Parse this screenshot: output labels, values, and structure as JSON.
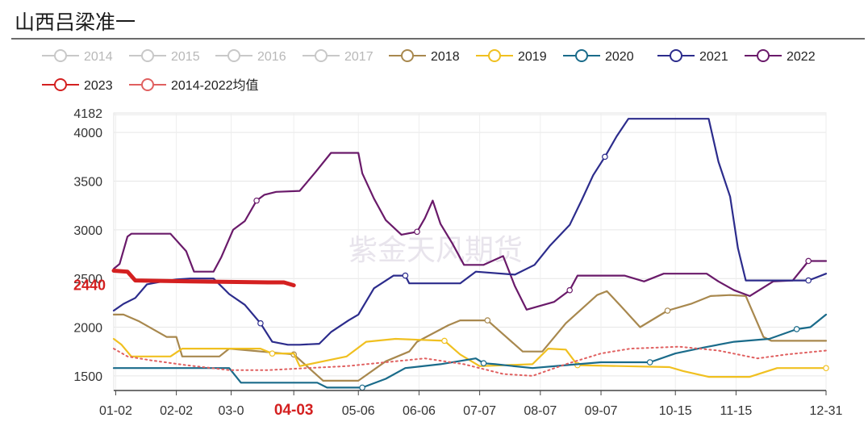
{
  "title": "山西吕梁准一",
  "watermark": "紫金天风期货",
  "chart_data": {
    "type": "line",
    "ylim": [
      1350,
      4200
    ],
    "yticks": [
      1500,
      2000,
      2500,
      3000,
      3500,
      4000
    ],
    "ymax_label": "4182",
    "ymax_value": 4182,
    "current_label": "2440",
    "current_value": 2440,
    "xlim": [
      1,
      365
    ],
    "xticks": [
      {
        "label": "01-02",
        "day": 2
      },
      {
        "label": "02-02",
        "day": 33
      },
      {
        "label": "03-0",
        "day": 61
      },
      {
        "label": "04-03",
        "day": 93,
        "highlight": true
      },
      {
        "label": "05-06",
        "day": 126
      },
      {
        "label": "06-06",
        "day": 157
      },
      {
        "label": "07-07",
        "day": 188
      },
      {
        "label": "08-07",
        "day": 219
      },
      {
        "label": "09-07",
        "day": 250
      },
      {
        "label": "10-15",
        "day": 288
      },
      {
        "label": "11-15",
        "day": 319
      },
      {
        "label": "12-31",
        "day": 365
      }
    ],
    "legend_placement": "top",
    "series": [
      {
        "name": "2014",
        "color": "#c8c8c8",
        "legend_only": true
      },
      {
        "name": "2015",
        "color": "#c8c8c8",
        "legend_only": true
      },
      {
        "name": "2016",
        "color": "#c8c8c8",
        "legend_only": true
      },
      {
        "name": "2017",
        "color": "#c8c8c8",
        "legend_only": true
      },
      {
        "name": "2018",
        "color": "#a8884e",
        "points": [
          [
            1,
            2130
          ],
          [
            6,
            2130
          ],
          [
            14,
            2060
          ],
          [
            28,
            1900
          ],
          [
            33,
            1900
          ],
          [
            36,
            1700
          ],
          [
            55,
            1700
          ],
          [
            60,
            1780
          ],
          [
            93,
            1720
          ],
          [
            108,
            1450
          ],
          [
            126,
            1450
          ],
          [
            140,
            1650
          ],
          [
            152,
            1750
          ],
          [
            156,
            1850
          ],
          [
            172,
            2020
          ],
          [
            178,
            2070
          ],
          [
            192,
            2070
          ],
          [
            210,
            1750
          ],
          [
            220,
            1750
          ],
          [
            232,
            2040
          ],
          [
            248,
            2330
          ],
          [
            253,
            2370
          ],
          [
            260,
            2220
          ],
          [
            270,
            2000
          ],
          [
            284,
            2170
          ],
          [
            296,
            2240
          ],
          [
            306,
            2320
          ],
          [
            316,
            2330
          ],
          [
            324,
            2320
          ],
          [
            333,
            1900
          ],
          [
            337,
            1860
          ],
          [
            365,
            1860
          ]
        ]
      },
      {
        "name": "2019",
        "color": "#f0c020",
        "points": [
          [
            1,
            1880
          ],
          [
            5,
            1820
          ],
          [
            10,
            1700
          ],
          [
            30,
            1700
          ],
          [
            36,
            1780
          ],
          [
            76,
            1780
          ],
          [
            82,
            1730
          ],
          [
            93,
            1730
          ],
          [
            96,
            1600
          ],
          [
            120,
            1700
          ],
          [
            130,
            1850
          ],
          [
            145,
            1880
          ],
          [
            170,
            1860
          ],
          [
            178,
            1720
          ],
          [
            188,
            1600
          ],
          [
            215,
            1620
          ],
          [
            223,
            1780
          ],
          [
            232,
            1770
          ],
          [
            238,
            1610
          ],
          [
            285,
            1590
          ],
          [
            292,
            1550
          ],
          [
            305,
            1490
          ],
          [
            326,
            1490
          ],
          [
            340,
            1580
          ],
          [
            365,
            1580
          ]
        ]
      },
      {
        "name": "2020",
        "color": "#1a6b8a",
        "points": [
          [
            1,
            1580
          ],
          [
            60,
            1580
          ],
          [
            66,
            1430
          ],
          [
            105,
            1430
          ],
          [
            110,
            1380
          ],
          [
            128,
            1380
          ],
          [
            140,
            1470
          ],
          [
            150,
            1580
          ],
          [
            168,
            1620
          ],
          [
            186,
            1680
          ],
          [
            190,
            1630
          ],
          [
            196,
            1620
          ],
          [
            215,
            1580
          ],
          [
            232,
            1610
          ],
          [
            250,
            1640
          ],
          [
            275,
            1640
          ],
          [
            288,
            1730
          ],
          [
            302,
            1790
          ],
          [
            318,
            1850
          ],
          [
            336,
            1880
          ],
          [
            350,
            1980
          ],
          [
            357,
            2000
          ],
          [
            365,
            2130
          ]
        ]
      },
      {
        "name": "2021",
        "color": "#2c2c8c",
        "points": [
          [
            1,
            2170
          ],
          [
            6,
            2240
          ],
          [
            12,
            2300
          ],
          [
            18,
            2440
          ],
          [
            26,
            2470
          ],
          [
            33,
            2490
          ],
          [
            40,
            2500
          ],
          [
            52,
            2500
          ],
          [
            60,
            2340
          ],
          [
            68,
            2230
          ],
          [
            76,
            2040
          ],
          [
            82,
            1850
          ],
          [
            90,
            1820
          ],
          [
            96,
            1820
          ],
          [
            106,
            1830
          ],
          [
            112,
            1950
          ],
          [
            121,
            2070
          ],
          [
            126,
            2130
          ],
          [
            134,
            2400
          ],
          [
            144,
            2530
          ],
          [
            150,
            2530
          ],
          [
            152,
            2450
          ],
          [
            178,
            2450
          ],
          [
            186,
            2570
          ],
          [
            206,
            2540
          ],
          [
            216,
            2640
          ],
          [
            224,
            2840
          ],
          [
            234,
            3050
          ],
          [
            240,
            3300
          ],
          [
            246,
            3560
          ],
          [
            252,
            3750
          ],
          [
            258,
            3960
          ],
          [
            264,
            4140
          ],
          [
            305,
            4140
          ],
          [
            310,
            3700
          ],
          [
            316,
            3340
          ],
          [
            320,
            2810
          ],
          [
            324,
            2480
          ],
          [
            336,
            2480
          ],
          [
            344,
            2480
          ],
          [
            356,
            2480
          ],
          [
            365,
            2550
          ]
        ]
      },
      {
        "name": "2022",
        "color": "#6a1a6a",
        "points": [
          [
            1,
            2600
          ],
          [
            4,
            2650
          ],
          [
            8,
            2930
          ],
          [
            10,
            2960
          ],
          [
            30,
            2960
          ],
          [
            38,
            2780
          ],
          [
            42,
            2570
          ],
          [
            52,
            2570
          ],
          [
            56,
            2720
          ],
          [
            62,
            3000
          ],
          [
            68,
            3090
          ],
          [
            74,
            3300
          ],
          [
            78,
            3360
          ],
          [
            84,
            3390
          ],
          [
            96,
            3400
          ],
          [
            104,
            3590
          ],
          [
            112,
            3790
          ],
          [
            126,
            3790
          ],
          [
            128,
            3580
          ],
          [
            134,
            3320
          ],
          [
            140,
            3100
          ],
          [
            148,
            2950
          ],
          [
            156,
            2980
          ],
          [
            160,
            3120
          ],
          [
            164,
            3300
          ],
          [
            168,
            3060
          ],
          [
            174,
            2860
          ],
          [
            180,
            2640
          ],
          [
            190,
            2640
          ],
          [
            200,
            2730
          ],
          [
            206,
            2420
          ],
          [
            212,
            2180
          ],
          [
            226,
            2260
          ],
          [
            234,
            2380
          ],
          [
            238,
            2530
          ],
          [
            262,
            2530
          ],
          [
            272,
            2470
          ],
          [
            282,
            2550
          ],
          [
            304,
            2550
          ],
          [
            310,
            2470
          ],
          [
            318,
            2380
          ],
          [
            326,
            2320
          ],
          [
            338,
            2470
          ],
          [
            348,
            2480
          ],
          [
            356,
            2680
          ],
          [
            365,
            2680
          ]
        ]
      },
      {
        "name": "2023",
        "color": "#d42020",
        "points": [
          [
            1,
            2580
          ],
          [
            8,
            2570
          ],
          [
            12,
            2480
          ],
          [
            40,
            2470
          ],
          [
            80,
            2460
          ],
          [
            88,
            2460
          ],
          [
            93,
            2430
          ]
        ]
      },
      {
        "name": "2014-2022均值",
        "color": "#e06060",
        "dotted": true,
        "points": [
          [
            1,
            1780
          ],
          [
            8,
            1700
          ],
          [
            20,
            1660
          ],
          [
            38,
            1610
          ],
          [
            60,
            1560
          ],
          [
            80,
            1560
          ],
          [
            100,
            1580
          ],
          [
            120,
            1600
          ],
          [
            140,
            1640
          ],
          [
            160,
            1680
          ],
          [
            180,
            1620
          ],
          [
            200,
            1520
          ],
          [
            215,
            1500
          ],
          [
            232,
            1620
          ],
          [
            250,
            1730
          ],
          [
            265,
            1780
          ],
          [
            290,
            1800
          ],
          [
            310,
            1760
          ],
          [
            330,
            1680
          ],
          [
            345,
            1720
          ],
          [
            365,
            1760
          ]
        ]
      }
    ]
  }
}
